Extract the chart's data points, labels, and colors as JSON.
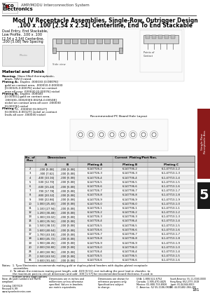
{
  "title_line1": "Mod IV Receptacle Assemblies, Single-Row, Outrigger Design",
  "title_line2": ".100 x .100 [2.54 x 2.54] Centerline, End To End Stackable",
  "header_system": "AMP/MODU Interconnection System",
  "table_data": [
    [
      "2",
      ".200 [5.08]",
      ".200 [5.08]",
      "6-147726-2",
      "6-147736-2",
      "6-1-47713-1-2"
    ],
    [
      "3",
      ".300 [7.62]",
      ".200 [5.08]",
      "6-147726-3",
      "6-147736-3",
      "6-1-47713-1-3"
    ],
    [
      "4",
      ".400 [10.16]",
      ".200 [5.08]",
      "6-147726-4",
      "6-147736-4",
      "6-1-47713-1-4"
    ],
    [
      "5",
      ".500 [12.70]",
      ".200 [5.08]",
      "6-147726-5",
      "6-147736-5",
      "6-1-47713-1-5"
    ],
    [
      "6",
      ".600 [15.24]",
      ".200 [5.08]",
      "6-147726-6",
      "6-147736-6",
      "6-1-47713-1-6"
    ],
    [
      "7",
      ".700 [17.78]",
      ".200 [5.08]",
      "6-147726-7",
      "6-147736-7",
      "6-1-47713-1-7"
    ],
    [
      "8",
      ".800 [20.32]",
      ".200 [5.08]",
      "6-147726-8",
      "6-147736-8",
      "6-1-47713-1-8"
    ],
    [
      "9",
      ".900 [22.86]",
      ".200 [5.08]",
      "6-147726-9",
      "6-147736-9",
      "6-1-47713-1-9"
    ],
    [
      "10",
      "1.000 [25.40]",
      ".200 [5.08]",
      "6-147726-0",
      "6-147736-0",
      "6-1-47713-1-0"
    ],
    [
      "11",
      "1.100 [27.94]",
      ".200 [5.08]",
      "6-147726-1",
      "6-147736-1",
      "6-1-47713-1-1"
    ],
    [
      "12",
      "1.200 [30.48]",
      ".200 [5.08]",
      "6-147726-2",
      "6-147736-2",
      "6-1-47713-1-2"
    ],
    [
      "13",
      "1.300 [33.02]",
      ".200 [5.08]",
      "6-147726-3",
      "6-147736-3",
      "6-1-47713-1-3"
    ],
    [
      "14",
      "1.400 [35.56]",
      ".200 [5.08]",
      "6-147726-4",
      "6-147736-4",
      "6-1-47713-1-4"
    ],
    [
      "15",
      "1.500 [38.10]",
      ".200 [5.08]",
      "6-147726-5",
      "6-147736-5",
      "6-1-47713-1-5"
    ],
    [
      "16",
      "1.600 [40.64]",
      ".200 [5.08]",
      "6-147726-6",
      "6-147736-6",
      "6-1-47713-1-6"
    ],
    [
      "17",
      "1.700 [43.18]",
      ".200 [5.08]",
      "6-147726-7",
      "6-147736-7",
      "6-1-47713-1-7"
    ],
    [
      "18",
      "1.800 [45.72]",
      ".200 [5.08]",
      "6-147726-8",
      "6-147736-8",
      "6-1-47713-1-8"
    ],
    [
      "19",
      "1.900 [48.26]",
      ".200 [5.08]",
      "6-147726-9",
      "6-147736-9",
      "6-1-47713-1-9"
    ],
    [
      "20",
      "2.000 [50.80]",
      ".200 [5.08]",
      "6-147726-0",
      "6-147736-0",
      "6-1-47713-1-0"
    ],
    [
      "24",
      "2.400 [60.96]",
      ".200 [5.08]",
      "6-147726-4",
      "6-147736-4",
      "6-1-47713-1-4"
    ],
    [
      "25",
      "2.500 [63.50]",
      ".200 [5.08]",
      "6-147726-5",
      "6-147736-5",
      "6-1-47713-1-5"
    ],
    [
      "36",
      "3.600 [91.44]",
      ".200 [5.08]",
      "6-147726-6",
      "6-147736-6",
      "6-1-47713-1-6"
    ]
  ],
  "bg_color": "#ffffff",
  "section_tab_color": "#8b1a1a",
  "section_num_bg": "#1a1a1a",
  "table_header_bg": "#c8c8c8",
  "table_subheader_bg": "#d8d8d8",
  "row_even_bg": "#ececec",
  "row_odd_bg": "#f8f8f8"
}
